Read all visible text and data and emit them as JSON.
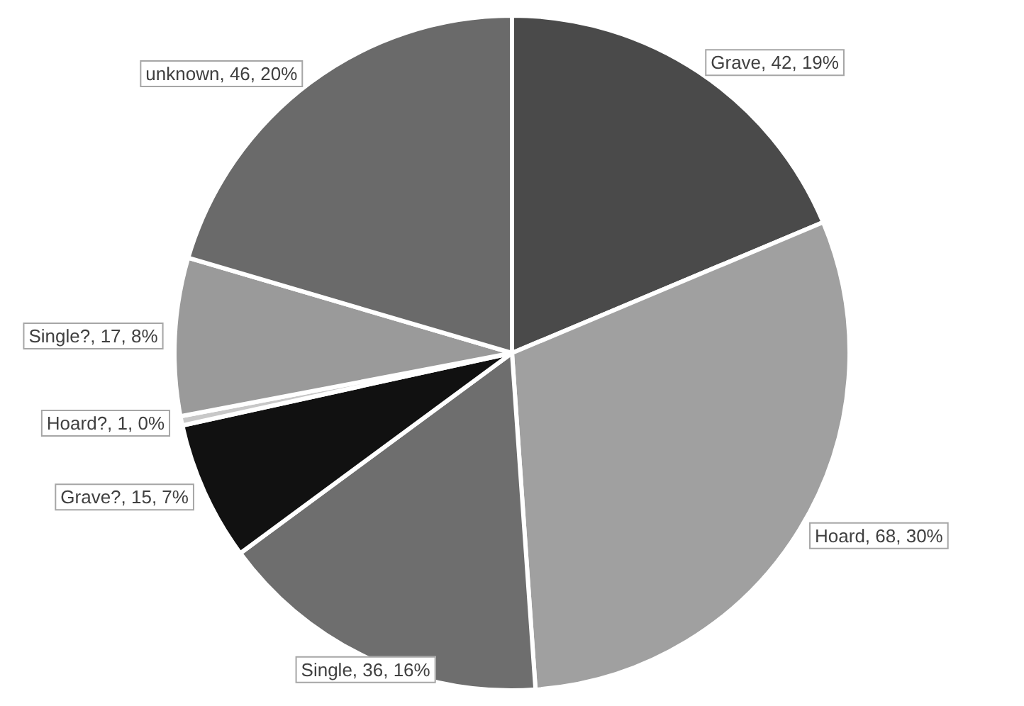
{
  "chart_data": {
    "type": "pie",
    "categories": [
      "Grave",
      "Hoard",
      "Single",
      "Grave?",
      "Hoard?",
      "Single?",
      "unknown"
    ],
    "values": [
      42,
      68,
      36,
      15,
      1,
      17,
      46
    ],
    "colors": [
      "#4a4a4a",
      "#a0a0a0",
      "#6e6e6e",
      "#111111",
      "#c8c8c8",
      "#9a9a9a",
      "#6a6a6a"
    ],
    "value_labels": [
      "42, 19%",
      "68, 30%",
      "36, 16%",
      "15, 7%",
      "1, 0%",
      "17, 8%",
      "46, 20%"
    ],
    "legend": false
  }
}
